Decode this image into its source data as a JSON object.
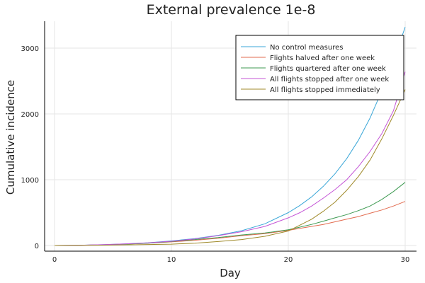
{
  "chart_data": {
    "type": "line",
    "title": "External prevalence 1e-8",
    "xlabel": "Day",
    "ylabel": "Cumulative incidence",
    "xlim": [
      0,
      30
    ],
    "ylim": [
      0,
      3350
    ],
    "xticks": [
      0,
      10,
      20,
      30
    ],
    "yticks": [
      0,
      1000,
      2000,
      3000
    ],
    "grid": true,
    "legend_position": "top-right",
    "x": [
      0,
      2,
      4,
      6,
      8,
      10,
      12,
      14,
      16,
      18,
      20,
      21,
      22,
      23,
      24,
      25,
      26,
      27,
      28,
      29,
      30
    ],
    "series": [
      {
        "name": "No control measures",
        "color": "#3BA7D8",
        "values": [
          0,
          3,
          12,
          25,
          42,
          70,
          105,
          155,
          225,
          330,
          500,
          610,
          740,
          900,
          1090,
          1320,
          1600,
          1940,
          2350,
          2800,
          3320
        ]
      },
      {
        "name": "Flights halved after one week",
        "color": "#E26B4F",
        "values": [
          0,
          3,
          10,
          20,
          35,
          55,
          80,
          110,
          150,
          180,
          230,
          260,
          290,
          320,
          360,
          400,
          440,
          490,
          540,
          600,
          670
        ]
      },
      {
        "name": "Flights quartered after one week",
        "color": "#3E9A52",
        "values": [
          0,
          3,
          10,
          20,
          35,
          60,
          90,
          120,
          160,
          190,
          240,
          280,
          320,
          370,
          420,
          470,
          530,
          600,
          700,
          820,
          960
        ]
      },
      {
        "name": "All flights stopped after one week",
        "color": "#C454D6",
        "values": [
          0,
          3,
          12,
          24,
          40,
          65,
          100,
          150,
          210,
          290,
          420,
          500,
          600,
          720,
          850,
          1000,
          1200,
          1430,
          1700,
          2050,
          2640
        ]
      },
      {
        "name": "All flights stopped immediately",
        "color": "#A08A2A",
        "values": [
          0,
          2,
          5,
          10,
          15,
          20,
          35,
          60,
          90,
          140,
          220,
          310,
          400,
          520,
          660,
          840,
          1050,
          1300,
          1620,
          1980,
          2370
        ]
      }
    ]
  }
}
